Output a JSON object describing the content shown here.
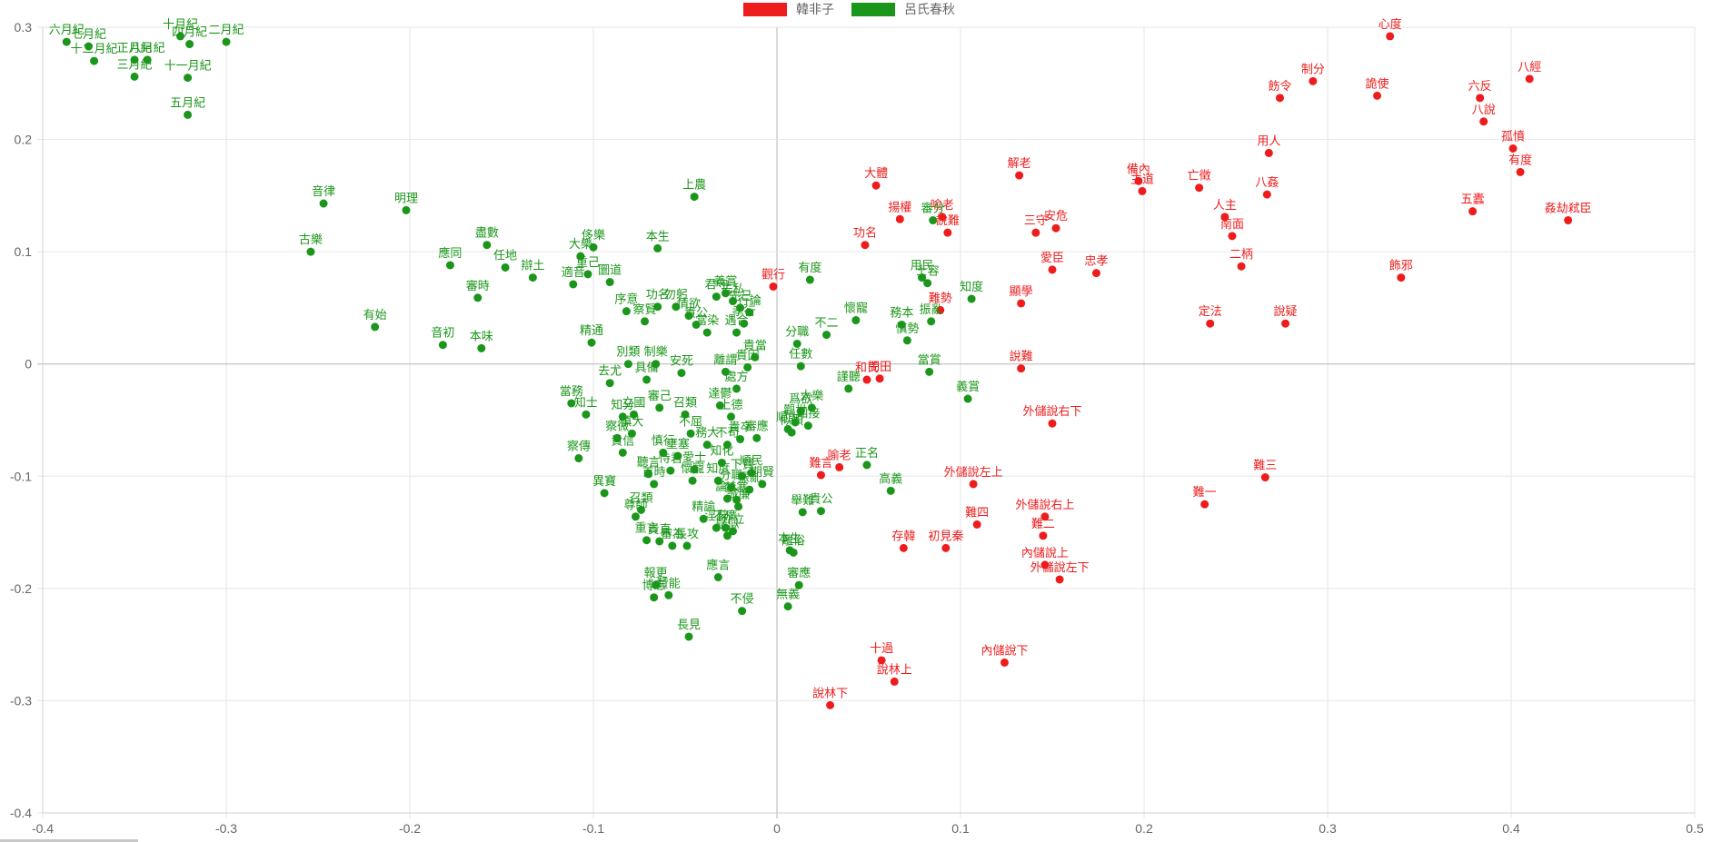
{
  "chart_data": {
    "type": "scatter",
    "xlim": [
      -0.4,
      0.5
    ],
    "ylim": [
      -0.4,
      0.3
    ],
    "x_ticks": [
      "-0.4",
      "-0.3",
      "-0.2",
      "-0.1",
      "0",
      "0.1",
      "0.2",
      "0.3",
      "0.4",
      "0.5"
    ],
    "y_ticks": [
      "0.3",
      "0.2",
      "0.1",
      "0",
      "-0.1",
      "-0.2",
      "-0.3",
      "-0.4"
    ],
    "grid": true,
    "legend_position": "top",
    "series": [
      {
        "name": "韓非子",
        "color": "#ee1c1c",
        "points": [
          {
            "label": "心度",
            "x": 0.334,
            "y": 0.292
          },
          {
            "label": "八經",
            "x": 0.41,
            "y": 0.254
          },
          {
            "label": "制分",
            "x": 0.292,
            "y": 0.252
          },
          {
            "label": "飭令",
            "x": 0.274,
            "y": 0.237
          },
          {
            "label": "詭使",
            "x": 0.327,
            "y": 0.239
          },
          {
            "label": "六反",
            "x": 0.383,
            "y": 0.237
          },
          {
            "label": "八說",
            "x": 0.385,
            "y": 0.216
          },
          {
            "label": "孤憤",
            "x": 0.401,
            "y": 0.192
          },
          {
            "label": "用人",
            "x": 0.268,
            "y": 0.188
          },
          {
            "label": "有度",
            "x": 0.405,
            "y": 0.171
          },
          {
            "label": "八姦",
            "x": 0.267,
            "y": 0.151
          },
          {
            "label": "解老",
            "x": 0.132,
            "y": 0.168
          },
          {
            "label": "大體",
            "x": 0.054,
            "y": 0.159
          },
          {
            "label": "備內",
            "x": 0.197,
            "y": 0.163
          },
          {
            "label": "主道",
            "x": 0.199,
            "y": 0.154
          },
          {
            "label": "亡徵",
            "x": 0.23,
            "y": 0.157
          },
          {
            "label": "五蠹",
            "x": 0.379,
            "y": 0.136
          },
          {
            "label": "姦劫弒臣",
            "x": 0.431,
            "y": 0.128
          },
          {
            "label": "人主",
            "x": 0.244,
            "y": 0.131
          },
          {
            "label": "南面",
            "x": 0.248,
            "y": 0.114
          },
          {
            "label": "揚權",
            "x": 0.067,
            "y": 0.129
          },
          {
            "label": "喻老",
            "x": 0.09,
            "y": 0.131
          },
          {
            "label": "說難",
            "x": 0.093,
            "y": 0.117
          },
          {
            "label": "三守",
            "x": 0.141,
            "y": 0.117
          },
          {
            "label": "安危",
            "x": 0.152,
            "y": 0.121
          },
          {
            "label": "功名",
            "x": 0.048,
            "y": 0.106
          },
          {
            "label": "二柄",
            "x": 0.253,
            "y": 0.087
          },
          {
            "label": "愛臣",
            "x": 0.15,
            "y": 0.084
          },
          {
            "label": "忠孝",
            "x": 0.174,
            "y": 0.081
          },
          {
            "label": "飾邪",
            "x": 0.34,
            "y": 0.077
          },
          {
            "label": "觀行",
            "x": -0.002,
            "y": 0.069
          },
          {
            "label": "顯學",
            "x": 0.133,
            "y": 0.054
          },
          {
            "label": "難勢",
            "x": 0.089,
            "y": 0.048
          },
          {
            "label": "定法",
            "x": 0.236,
            "y": 0.036
          },
          {
            "label": "說疑",
            "x": 0.277,
            "y": 0.036
          },
          {
            "label": "說難",
            "x": 0.133,
            "y": -0.004
          },
          {
            "label": "和氏",
            "x": 0.049,
            "y": -0.014
          },
          {
            "label": "問田",
            "x": 0.056,
            "y": -0.013
          },
          {
            "label": "外儲說右下",
            "x": 0.15,
            "y": -0.053
          },
          {
            "label": "喻老",
            "x": 0.034,
            "y": -0.092
          },
          {
            "label": "難言",
            "x": 0.024,
            "y": -0.099
          },
          {
            "label": "難三",
            "x": 0.266,
            "y": -0.101
          },
          {
            "label": "外儲說左上",
            "x": 0.107,
            "y": -0.107
          },
          {
            "label": "難一",
            "x": 0.233,
            "y": -0.125
          },
          {
            "label": "外儲說右上",
            "x": 0.146,
            "y": -0.136
          },
          {
            "label": "難四",
            "x": 0.109,
            "y": -0.143
          },
          {
            "label": "難二",
            "x": 0.145,
            "y": -0.153
          },
          {
            "label": "存韓",
            "x": 0.069,
            "y": -0.164
          },
          {
            "label": "初見秦",
            "x": 0.092,
            "y": -0.164
          },
          {
            "label": "內儲說上",
            "x": 0.146,
            "y": -0.179
          },
          {
            "label": "外儲說左下",
            "x": 0.154,
            "y": -0.192
          },
          {
            "label": "十過",
            "x": 0.057,
            "y": -0.264
          },
          {
            "label": "內儲說下",
            "x": 0.124,
            "y": -0.266
          },
          {
            "label": "說林上",
            "x": 0.064,
            "y": -0.283
          },
          {
            "label": "說林下",
            "x": 0.029,
            "y": -0.304
          }
        ]
      },
      {
        "name": "呂氏春秋",
        "color": "#1a961a",
        "points": [
          {
            "label": "六月紀",
            "x": -0.387,
            "y": 0.287
          },
          {
            "label": "七月紀",
            "x": -0.375,
            "y": 0.283
          },
          {
            "label": "十月紀",
            "x": -0.325,
            "y": 0.292
          },
          {
            "label": "四月紀",
            "x": -0.32,
            "y": 0.285
          },
          {
            "label": "二月紀",
            "x": -0.3,
            "y": 0.287
          },
          {
            "label": "十二月紀",
            "x": -0.372,
            "y": 0.27
          },
          {
            "label": "正月紀",
            "x": -0.35,
            "y": 0.271
          },
          {
            "label": "八月紀",
            "x": -0.343,
            "y": 0.271
          },
          {
            "label": "三月紀",
            "x": -0.35,
            "y": 0.256
          },
          {
            "label": "十一月紀",
            "x": -0.321,
            "y": 0.255
          },
          {
            "label": "五月紀",
            "x": -0.321,
            "y": 0.222
          },
          {
            "label": "音律",
            "x": -0.247,
            "y": 0.143
          },
          {
            "label": "明理",
            "x": -0.202,
            "y": 0.137
          },
          {
            "label": "古樂",
            "x": -0.254,
            "y": 0.1
          },
          {
            "label": "上農",
            "x": -0.045,
            "y": 0.149
          },
          {
            "label": "盡數",
            "x": -0.158,
            "y": 0.106
          },
          {
            "label": "應同",
            "x": -0.178,
            "y": 0.088
          },
          {
            "label": "任地",
            "x": -0.148,
            "y": 0.086
          },
          {
            "label": "辯土",
            "x": -0.133,
            "y": 0.077
          },
          {
            "label": "審時",
            "x": -0.163,
            "y": 0.059
          },
          {
            "label": "大樂",
            "x": -0.107,
            "y": 0.096
          },
          {
            "label": "侈樂",
            "x": -0.1,
            "y": 0.104
          },
          {
            "label": "本生",
            "x": -0.065,
            "y": 0.103
          },
          {
            "label": "重己",
            "x": -0.103,
            "y": 0.08
          },
          {
            "label": "適音",
            "x": -0.111,
            "y": 0.071
          },
          {
            "label": "圜道",
            "x": -0.091,
            "y": 0.073
          },
          {
            "label": "有始",
            "x": -0.219,
            "y": 0.033
          },
          {
            "label": "音初",
            "x": -0.182,
            "y": 0.017
          },
          {
            "label": "本味",
            "x": -0.161,
            "y": 0.014
          },
          {
            "label": "精通",
            "x": -0.101,
            "y": 0.019
          },
          {
            "label": "序意",
            "x": -0.082,
            "y": 0.047
          },
          {
            "label": "察賢",
            "x": -0.072,
            "y": 0.038
          },
          {
            "label": "功名",
            "x": -0.065,
            "y": 0.051
          },
          {
            "label": "勿躬",
            "x": -0.055,
            "y": 0.051
          },
          {
            "label": "情欲",
            "x": -0.048,
            "y": 0.043
          },
          {
            "label": "貴公",
            "x": -0.044,
            "y": 0.035
          },
          {
            "label": "當染",
            "x": -0.038,
            "y": 0.028
          },
          {
            "label": "君守",
            "x": -0.033,
            "y": 0.06
          },
          {
            "label": "義賞",
            "x": -0.028,
            "y": 0.063
          },
          {
            "label": "去私",
            "x": -0.024,
            "y": 0.056
          },
          {
            "label": "先己",
            "x": -0.02,
            "y": 0.05
          },
          {
            "label": "行論",
            "x": -0.015,
            "y": 0.046
          },
          {
            "label": "孝行",
            "x": -0.018,
            "y": 0.036
          },
          {
            "label": "遇合",
            "x": -0.022,
            "y": 0.028
          },
          {
            "label": "有度",
            "x": 0.018,
            "y": 0.075
          },
          {
            "label": "用民",
            "x": 0.079,
            "y": 0.077
          },
          {
            "label": "士容",
            "x": 0.082,
            "y": 0.072
          },
          {
            "label": "知度",
            "x": 0.106,
            "y": 0.058
          },
          {
            "label": "審分",
            "x": 0.085,
            "y": 0.128
          },
          {
            "label": "懷寵",
            "x": 0.043,
            "y": 0.039
          },
          {
            "label": "務本",
            "x": 0.068,
            "y": 0.035
          },
          {
            "label": "振亂",
            "x": 0.084,
            "y": 0.038
          },
          {
            "label": "慎勢",
            "x": 0.071,
            "y": 0.021
          },
          {
            "label": "分職",
            "x": 0.011,
            "y": 0.018
          },
          {
            "label": "不二",
            "x": 0.027,
            "y": 0.026
          },
          {
            "label": "任數",
            "x": 0.013,
            "y": -0.002
          },
          {
            "label": "貴當",
            "x": -0.012,
            "y": 0.006
          },
          {
            "label": "別類",
            "x": -0.081,
            "y": 0.0
          },
          {
            "label": "制樂",
            "x": -0.066,
            "y": 0.0
          },
          {
            "label": "去尤",
            "x": -0.091,
            "y": -0.017
          },
          {
            "label": "具備",
            "x": -0.071,
            "y": -0.014
          },
          {
            "label": "安死",
            "x": -0.052,
            "y": -0.008
          },
          {
            "label": "離謂",
            "x": -0.028,
            "y": -0.007
          },
          {
            "label": "貴因",
            "x": -0.016,
            "y": -0.003
          },
          {
            "label": "處方",
            "x": -0.022,
            "y": -0.022
          },
          {
            "label": "謹聽",
            "x": 0.039,
            "y": -0.022
          },
          {
            "label": "當賞",
            "x": 0.083,
            "y": -0.007
          },
          {
            "label": "義賞",
            "x": 0.104,
            "y": -0.031
          },
          {
            "label": "當務",
            "x": -0.112,
            "y": -0.035
          },
          {
            "label": "知士",
            "x": -0.104,
            "y": -0.045
          },
          {
            "label": "知分",
            "x": -0.084,
            "y": -0.047
          },
          {
            "label": "立國",
            "x": -0.078,
            "y": -0.045
          },
          {
            "label": "召類",
            "x": -0.05,
            "y": -0.045
          },
          {
            "label": "達鬱",
            "x": -0.031,
            "y": -0.037
          },
          {
            "label": "審己",
            "x": -0.064,
            "y": -0.039
          },
          {
            "label": "爲欲",
            "x": 0.013,
            "y": -0.042
          },
          {
            "label": "大樂",
            "x": 0.019,
            "y": -0.039
          },
          {
            "label": "似順",
            "x": 0.008,
            "y": -0.061
          },
          {
            "label": "順說",
            "x": 0.006,
            "y": -0.058
          },
          {
            "label": "觀世",
            "x": 0.01,
            "y": -0.052
          },
          {
            "label": "知接",
            "x": 0.017,
            "y": -0.055
          },
          {
            "label": "上德",
            "x": -0.025,
            "y": -0.047
          },
          {
            "label": "慎大",
            "x": -0.079,
            "y": -0.062
          },
          {
            "label": "察微",
            "x": -0.087,
            "y": -0.066
          },
          {
            "label": "不屈",
            "x": -0.047,
            "y": -0.062
          },
          {
            "label": "貴卒",
            "x": -0.02,
            "y": -0.067
          },
          {
            "label": "不苟",
            "x": -0.027,
            "y": -0.072
          },
          {
            "label": "審應",
            "x": -0.011,
            "y": -0.066
          },
          {
            "label": "察傳",
            "x": -0.108,
            "y": -0.084
          },
          {
            "label": "貴信",
            "x": -0.084,
            "y": -0.079
          },
          {
            "label": "慎行",
            "x": -0.062,
            "y": -0.079
          },
          {
            "label": "壅塞",
            "x": -0.054,
            "y": -0.082
          },
          {
            "label": "務大",
            "x": -0.038,
            "y": -0.072
          },
          {
            "label": "知化",
            "x": -0.03,
            "y": -0.088
          },
          {
            "label": "順民",
            "x": -0.014,
            "y": -0.097
          },
          {
            "label": "恃君",
            "x": -0.058,
            "y": -0.095
          },
          {
            "label": "聽言",
            "x": -0.07,
            "y": -0.098
          },
          {
            "label": "異寶",
            "x": -0.094,
            "y": -0.115
          },
          {
            "label": "首時",
            "x": -0.067,
            "y": -0.107
          },
          {
            "label": "懷寵",
            "x": -0.046,
            "y": -0.104
          },
          {
            "label": "愛士",
            "x": -0.045,
            "y": -0.094
          },
          {
            "label": "知度",
            "x": -0.032,
            "y": -0.104
          },
          {
            "label": "分職",
            "x": -0.025,
            "y": -0.11
          },
          {
            "label": "下賢",
            "x": -0.019,
            "y": -0.1
          },
          {
            "label": "振亂",
            "x": -0.015,
            "y": -0.112
          },
          {
            "label": "期賢",
            "x": -0.008,
            "y": -0.107
          },
          {
            "label": "論人",
            "x": -0.027,
            "y": -0.12
          },
          {
            "label": "禁塞",
            "x": -0.022,
            "y": -0.121
          },
          {
            "label": "正名",
            "x": 0.049,
            "y": -0.09
          },
          {
            "label": "高義",
            "x": 0.062,
            "y": -0.113
          },
          {
            "label": "舉難",
            "x": 0.014,
            "y": -0.132
          },
          {
            "label": "貴公",
            "x": 0.024,
            "y": -0.131
          },
          {
            "label": "召類",
            "x": -0.074,
            "y": -0.13
          },
          {
            "label": "尊師",
            "x": -0.077,
            "y": -0.136
          },
          {
            "label": "精諭",
            "x": -0.04,
            "y": -0.138
          },
          {
            "label": "淫辭",
            "x": -0.033,
            "y": -0.146
          },
          {
            "label": "不廣",
            "x": -0.028,
            "y": -0.146
          },
          {
            "label": "介立",
            "x": -0.024,
            "y": -0.149
          },
          {
            "label": "疑似",
            "x": -0.027,
            "y": -0.153
          },
          {
            "label": "誠廉",
            "x": -0.021,
            "y": -0.127
          },
          {
            "label": "重言",
            "x": -0.071,
            "y": -0.157
          },
          {
            "label": "貴直",
            "x": -0.064,
            "y": -0.158
          },
          {
            "label": "審為",
            "x": -0.057,
            "y": -0.162
          },
          {
            "label": "長攻",
            "x": -0.049,
            "y": -0.162
          },
          {
            "label": "本生",
            "x": 0.007,
            "y": -0.166
          },
          {
            "label": "離俗",
            "x": 0.009,
            "y": -0.168
          },
          {
            "label": "應言",
            "x": -0.032,
            "y": -0.19
          },
          {
            "label": "報更",
            "x": -0.066,
            "y": -0.197
          },
          {
            "label": "博志",
            "x": -0.067,
            "y": -0.208
          },
          {
            "label": "贊能",
            "x": -0.059,
            "y": -0.206
          },
          {
            "label": "審應",
            "x": 0.012,
            "y": -0.197
          },
          {
            "label": "無義",
            "x": 0.006,
            "y": -0.216
          },
          {
            "label": "不侵",
            "x": -0.019,
            "y": -0.22
          },
          {
            "label": "長見",
            "x": -0.048,
            "y": -0.243
          }
        ]
      }
    ]
  }
}
